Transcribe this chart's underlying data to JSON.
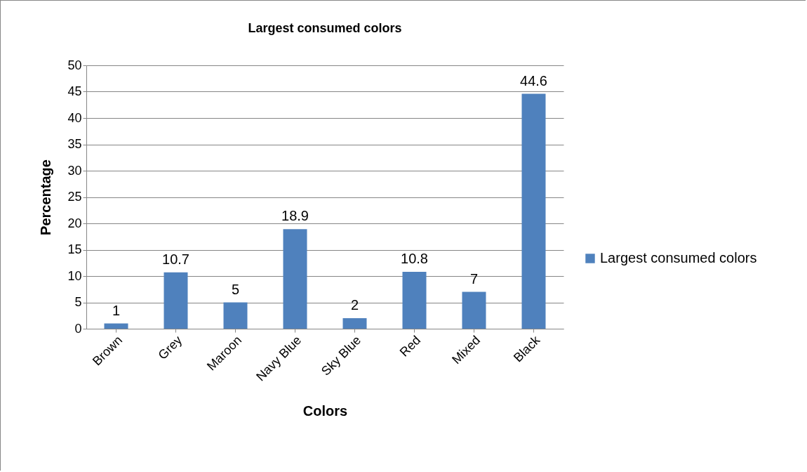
{
  "chart_data": {
    "type": "bar",
    "title": "Largest consumed colors",
    "xlabel": "Colors",
    "ylabel": "Percentage",
    "categories": [
      "Brown",
      "Grey",
      "Maroon",
      "Navy Blue",
      "Sky Blue",
      "Red",
      "Mixed",
      "Black"
    ],
    "series": [
      {
        "name": "Largest consumed colors",
        "color": "#4f81bd",
        "values": [
          1,
          10.7,
          5,
          18.9,
          2,
          10.8,
          7,
          44.6
        ]
      }
    ],
    "ylim": [
      0,
      50
    ],
    "yticks": [
      0,
      5,
      10,
      15,
      20,
      25,
      30,
      35,
      40,
      45,
      50
    ],
    "grid": "y",
    "legend": "right",
    "data_labels": true
  }
}
